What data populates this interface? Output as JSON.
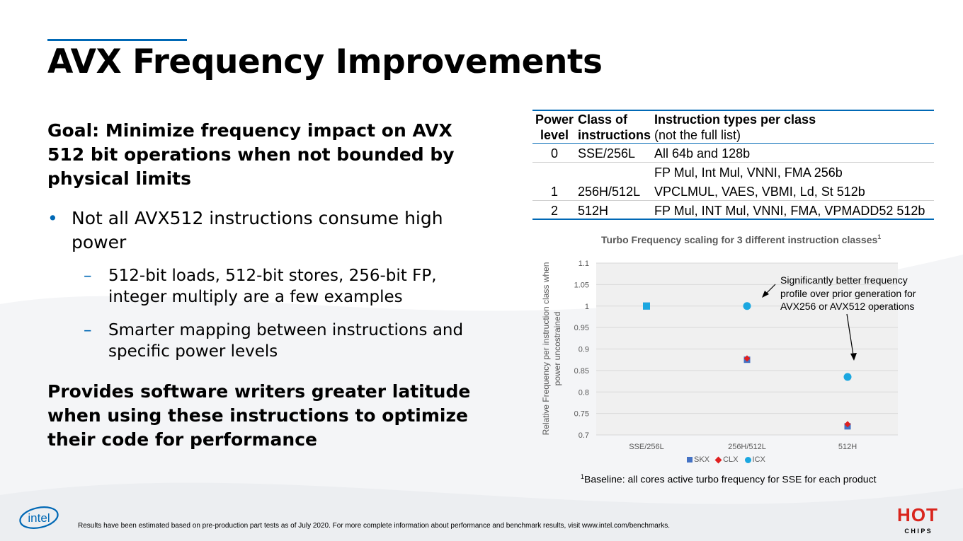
{
  "slide": {
    "title": "AVX Frequency Improvements",
    "goal": "Goal:  Minimize frequency impact on AVX 512 bit operations when not bounded by physical limits",
    "bullet": "Not all AVX512 instructions consume high power",
    "bullet_symbol": "•",
    "sub_symbol": "–",
    "sub_bullets": [
      "512-bit loads, 512-bit stores, 256-bit FP, integer multiply are a few examples",
      "Smarter mapping between instructions and specific power levels"
    ],
    "provides": "Provides software writers greater latitude when using these instructions to optimize their code for performance",
    "accent_color": "#0068b5"
  },
  "table": {
    "headers": {
      "level_1": "Power",
      "level_2": "level",
      "class_1": "Class of",
      "class_2": "instructions",
      "types_1": "Instruction types per class",
      "types_2": "(not the full list)"
    },
    "rows": [
      {
        "level": "0",
        "class": "SSE/256L",
        "types": [
          "All 64b and 128b"
        ]
      },
      {
        "level": "1",
        "class": "256H/512L",
        "types": [
          "FP Mul, Int Mul, VNNI, FMA 256b",
          "VPCLMUL, VAES, VBMI, Ld, St 512b"
        ]
      },
      {
        "level": "2",
        "class": "512H",
        "types": [
          "FP Mul, INT Mul, VNNI, FMA, VPMADD52 512b"
        ]
      }
    ]
  },
  "chart_data": {
    "type": "scatter",
    "title": "Turbo Frequency scaling for 3 different instruction classes",
    "title_superscript": "1",
    "ylabel_line1": "Relative Frequency per instruction class when",
    "ylabel_line2": "power uncostrained",
    "categories": [
      "SSE/256L",
      "256H/512L",
      "512H"
    ],
    "ylim": [
      0.7,
      1.1
    ],
    "yticks": [
      "0.7",
      "0.75",
      "0.8",
      "0.85",
      "0.9",
      "0.95",
      "1",
      "1.05",
      "1.1"
    ],
    "grid": true,
    "legend_position": "bottom",
    "series": [
      {
        "name": "SKX",
        "marker": "square",
        "color": "#4472c4",
        "values": [
          1.0,
          0.875,
          0.72
        ]
      },
      {
        "name": "CLX",
        "marker": "diamond",
        "color": "#e02020",
        "values": [
          1.0,
          0.878,
          0.725
        ]
      },
      {
        "name": "ICX",
        "marker": "circle",
        "color": "#1ba7e0",
        "values": [
          null,
          1.0,
          0.835
        ]
      }
    ],
    "annotation": "Significantly better frequency profile over prior generation for AVX256 or AVX512 operations"
  },
  "baseline_note": {
    "superscript": "1",
    "text": "Baseline: all cores active turbo frequency for SSE for each product"
  },
  "footer": "Results have been estimated based on pre-production part tests as of July 2020. For more complete information about performance and benchmark results, visit www.intel.com/benchmarks.",
  "logos": {
    "intel": "intel",
    "hotchips_top": "HOT",
    "hotchips_bottom": "C H I P S",
    "intel_color": "#0068b5",
    "hotchips_color": "#d9251d"
  }
}
